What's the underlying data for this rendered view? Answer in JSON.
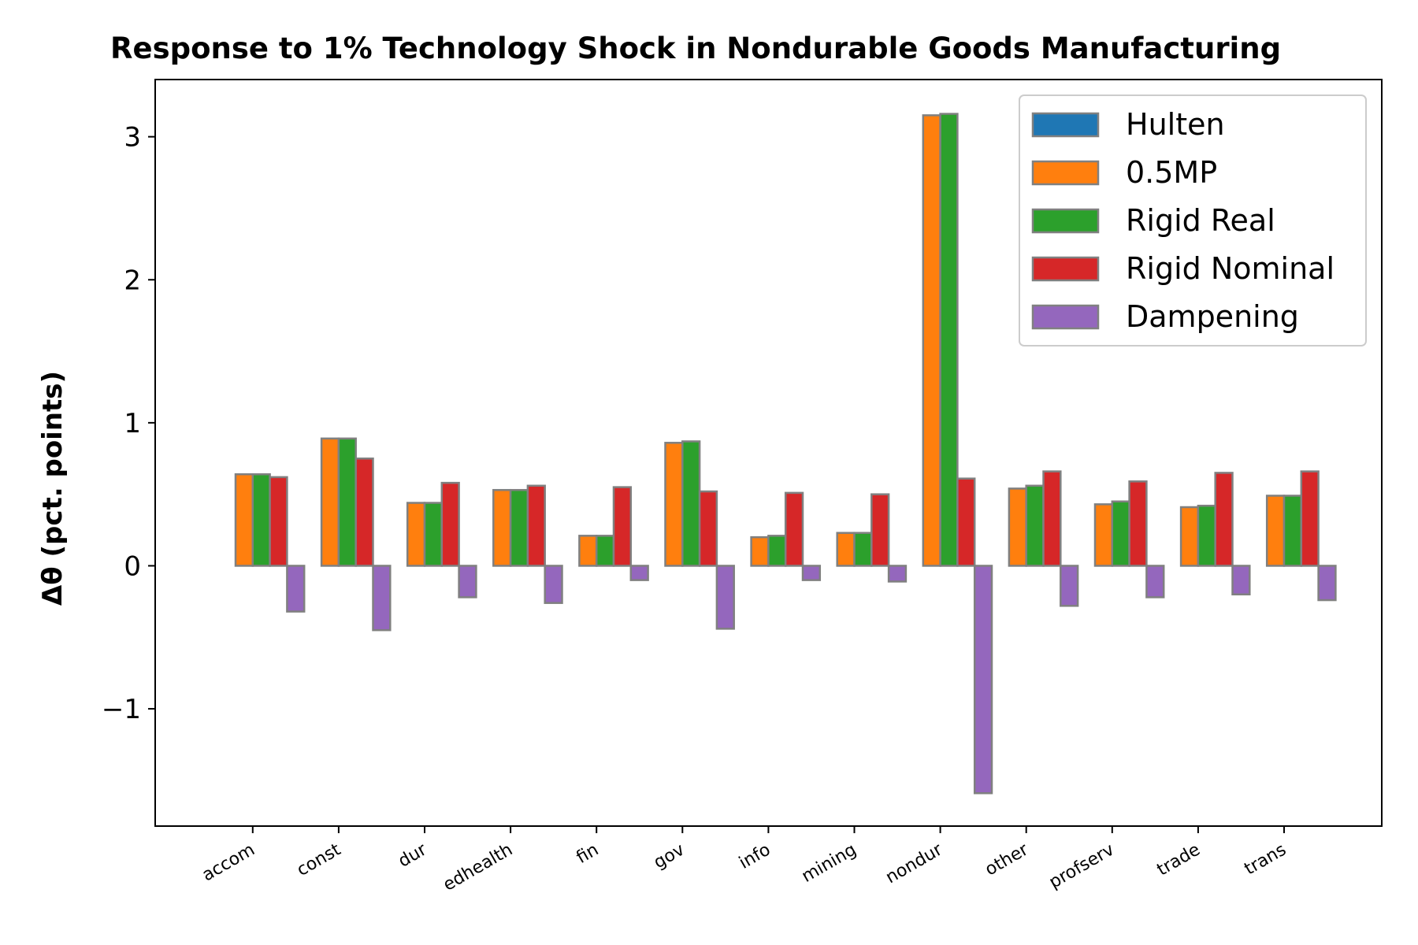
{
  "chart_data": {
    "type": "bar",
    "title": "Response to 1% Technology Shock in Nondurable Goods Manufacturing",
    "ylabel": "Δθ  (pct. points)",
    "xlabel": "",
    "ylim": [
      -1.82,
      3.4
    ],
    "yticks": [
      -1,
      0,
      1,
      2,
      3
    ],
    "ytick_labels": [
      "−1",
      "0",
      "1",
      "2",
      "3"
    ],
    "grid": false,
    "legend_position": "top-right",
    "bar_edge_color": "#808080",
    "categories": [
      "accom",
      "const",
      "dur",
      "edhealth",
      "fin",
      "gov",
      "info",
      "mining",
      "nondur",
      "other",
      "profserv",
      "trade",
      "trans"
    ],
    "series": [
      {
        "name": "Hulten",
        "color": "#1f77b4",
        "values": [
          0,
          0,
          0,
          0,
          0,
          0,
          0,
          0,
          0,
          0,
          0,
          0,
          0
        ]
      },
      {
        "name": "0.5MP",
        "color": "#ff7f0e",
        "values": [
          0.64,
          0.89,
          0.44,
          0.53,
          0.21,
          0.86,
          0.2,
          0.23,
          3.15,
          0.54,
          0.43,
          0.41,
          0.49
        ]
      },
      {
        "name": "Rigid Real",
        "color": "#2ca02c",
        "values": [
          0.64,
          0.89,
          0.44,
          0.53,
          0.21,
          0.87,
          0.21,
          0.23,
          3.16,
          0.56,
          0.45,
          0.42,
          0.49
        ]
      },
      {
        "name": "Rigid Nominal",
        "color": "#d62728",
        "values": [
          0.62,
          0.75,
          0.58,
          0.56,
          0.55,
          0.52,
          0.51,
          0.5,
          0.61,
          0.66,
          0.59,
          0.65,
          0.66
        ]
      },
      {
        "name": "Dampening",
        "color": "#9467bd",
        "values": [
          -0.32,
          -0.45,
          -0.22,
          -0.26,
          -0.1,
          -0.44,
          -0.1,
          -0.11,
          -1.59,
          -0.28,
          -0.22,
          -0.2,
          -0.24
        ]
      }
    ]
  }
}
